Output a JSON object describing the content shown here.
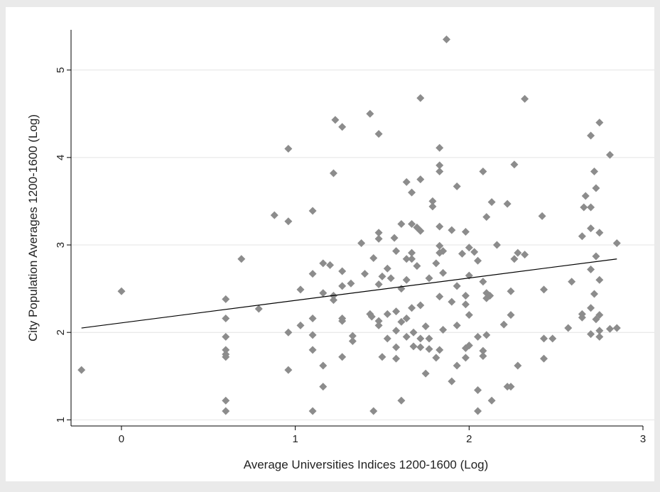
{
  "chart_data": {
    "type": "scatter",
    "xlabel": "Average Universities Indices 1200-1600 (Log)",
    "ylabel": "City Population Averages 1200-1600 (Log)",
    "xlim": [
      -0.29,
      3
    ],
    "xticks": [
      0,
      1,
      2,
      3
    ],
    "ylim": [
      0.93,
      5.46
    ],
    "yticks": [
      1,
      2,
      3,
      4,
      5
    ],
    "grid": true,
    "series": [
      {
        "mode": "markers",
        "color": "#8c8c8c",
        "x": [
          -0.23,
          0,
          0.6,
          0.6,
          0.6,
          0.6,
          0.6,
          0.6,
          0.6,
          0.6,
          0.69,
          0.79,
          0.88,
          0.96,
          0.96,
          0.96,
          0.96,
          1.03,
          1.03,
          1.1,
          1.1,
          1.1,
          1.1,
          1.1,
          1.1,
          1.16,
          1.16,
          1.16,
          1.16,
          1.2,
          1.22,
          1.22,
          1.22,
          1.23,
          1.27,
          1.27,
          1.27,
          1.27,
          1.27,
          1.27,
          1.32,
          1.33,
          1.33,
          1.38,
          1.4,
          1.43,
          1.43,
          1.44,
          1.45,
          1.45,
          1.48,
          1.48,
          1.48,
          1.48,
          1.48,
          1.48,
          1.5,
          1.5,
          1.53,
          1.53,
          1.53,
          1.55,
          1.57,
          1.58,
          1.58,
          1.58,
          1.58,
          1.58,
          1.61,
          1.61,
          1.61,
          1.61,
          1.64,
          1.64,
          1.64,
          1.64,
          1.64,
          1.67,
          1.67,
          1.67,
          1.67,
          1.67,
          1.68,
          1.68,
          1.7,
          1.7,
          1.72,
          1.72,
          1.72,
          1.72,
          1.72,
          1.72,
          1.75,
          1.75,
          1.77,
          1.77,
          1.77,
          1.79,
          1.79,
          1.81,
          1.81,
          1.83,
          1.83,
          1.83,
          1.83,
          1.83,
          1.83,
          1.83,
          1.83,
          1.85,
          1.85,
          1.85,
          1.87,
          1.9,
          1.9,
          1.9,
          1.93,
          1.93,
          1.93,
          1.93,
          1.96,
          1.98,
          1.98,
          1.98,
          1.98,
          1.98,
          2.0,
          2.0,
          2.0,
          2.0,
          2.03,
          2.05,
          2.05,
          2.05,
          2.05,
          2.08,
          2.08,
          2.08,
          2.08,
          2.1,
          2.1,
          2.1,
          2.1,
          2.12,
          2.13,
          2.13,
          2.16,
          2.2,
          2.22,
          2.22,
          2.24,
          2.24,
          2.24,
          2.26,
          2.26,
          2.28,
          2.28,
          2.32,
          2.32,
          2.42,
          2.43,
          2.43,
          2.43,
          2.48,
          2.57,
          2.59,
          2.65,
          2.65,
          2.65,
          2.66,
          2.67,
          2.7,
          2.7,
          2.7,
          2.7,
          2.7,
          2.7,
          2.72,
          2.72,
          2.73,
          2.73,
          2.73,
          2.75,
          2.75,
          2.75,
          2.75,
          2.75,
          2.75,
          2.81,
          2.81,
          2.85,
          2.85
        ],
        "values": [
          1.57,
          2.47,
          2.38,
          2.16,
          1.95,
          1.8,
          1.75,
          1.72,
          1.22,
          1.1,
          2.84,
          2.27,
          3.34,
          3.27,
          4.1,
          2.0,
          1.57,
          2.49,
          2.08,
          3.39,
          2.67,
          2.16,
          1.97,
          1.8,
          1.1,
          2.79,
          2.45,
          1.62,
          1.38,
          2.77,
          2.42,
          2.37,
          3.82,
          4.43,
          4.35,
          2.7,
          2.53,
          2.16,
          2.13,
          1.72,
          2.56,
          1.96,
          1.9,
          3.02,
          2.67,
          4.5,
          2.21,
          2.18,
          2.85,
          1.1,
          4.27,
          3.14,
          3.07,
          2.55,
          2.08,
          2.13,
          2.64,
          1.72,
          2.73,
          2.21,
          1.93,
          2.62,
          3.08,
          2.93,
          2.24,
          2.02,
          1.83,
          1.7,
          3.24,
          2.5,
          2.12,
          1.22,
          3.72,
          2.84,
          2.6,
          2.16,
          1.95,
          3.6,
          3.24,
          2.91,
          2.84,
          2.28,
          1.84,
          2.0,
          3.2,
          2.76,
          4.68,
          3.75,
          3.16,
          2.31,
          1.93,
          1.83,
          2.07,
          1.53,
          2.62,
          1.93,
          1.81,
          3.5,
          3.44,
          2.79,
          1.71,
          4.11,
          3.91,
          3.84,
          3.21,
          2.99,
          2.91,
          2.41,
          1.8,
          2.93,
          2.68,
          2.03,
          5.35,
          3.17,
          2.35,
          1.44,
          3.67,
          2.53,
          2.08,
          1.62,
          2.9,
          3.15,
          2.42,
          2.32,
          1.82,
          1.71,
          2.97,
          2.65,
          2.2,
          1.85,
          2.92,
          2.82,
          1.95,
          1.34,
          1.1,
          3.84,
          2.58,
          1.79,
          1.73,
          3.32,
          2.45,
          2.39,
          1.97,
          2.42,
          3.49,
          1.22,
          3.0,
          2.09,
          3.47,
          1.38,
          2.47,
          2.2,
          1.38,
          3.92,
          2.84,
          2.91,
          1.62,
          4.67,
          2.89,
          3.33,
          2.49,
          1.93,
          1.7,
          1.93,
          2.05,
          2.58,
          3.1,
          2.21,
          2.17,
          3.43,
          3.56,
          4.25,
          3.43,
          3.19,
          2.72,
          2.28,
          1.98,
          3.84,
          2.44,
          3.65,
          2.87,
          2.15,
          4.4,
          3.14,
          2.6,
          2.2,
          1.95,
          2.02,
          4.03,
          2.04,
          3.02,
          2.05
        ]
      },
      {
        "mode": "line",
        "color": "#000000",
        "x": [
          -0.23,
          2.85
        ],
        "values": [
          2.05,
          2.84
        ]
      }
    ]
  }
}
